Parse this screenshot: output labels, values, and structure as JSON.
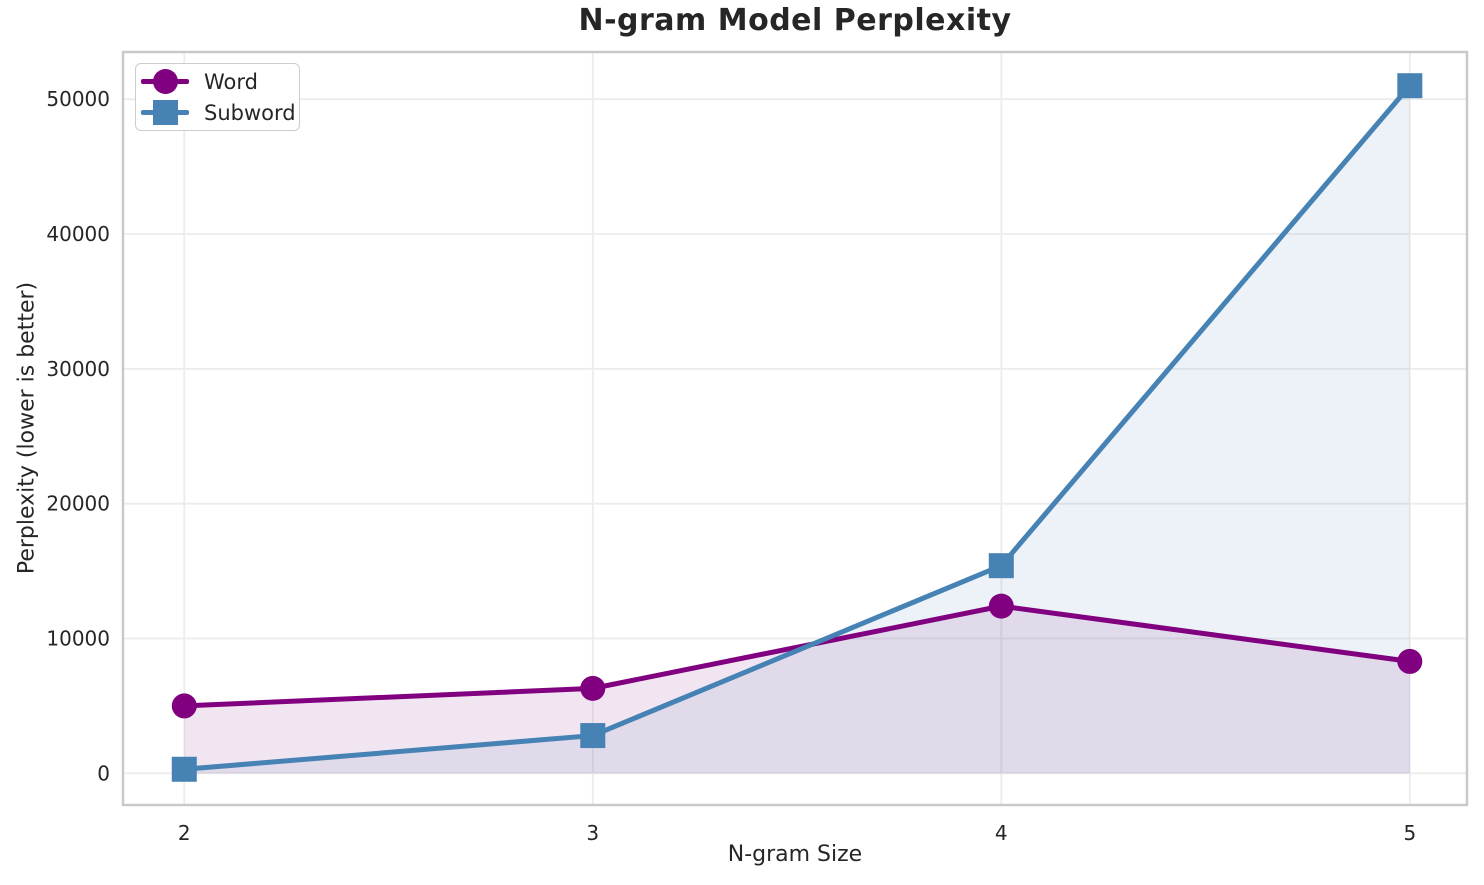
{
  "chart_data": {
    "type": "line",
    "title": "N-gram Model Perplexity",
    "xlabel": "N-gram Size",
    "ylabel": "Perplexity (lower is better)",
    "x": [
      2,
      3,
      4,
      5
    ],
    "series": [
      {
        "name": "Word",
        "values": [
          5000,
          6300,
          12400,
          8300
        ],
        "color": "#800080",
        "marker": "circle"
      },
      {
        "name": "Subword",
        "values": [
          300,
          2800,
          15400,
          51000
        ],
        "color": "#4682B4",
        "marker": "square"
      }
    ],
    "xticks": [
      "2",
      "3",
      "4",
      "5"
    ],
    "yticks": [
      0,
      10000,
      20000,
      30000,
      40000,
      50000
    ],
    "xlim": [
      1.85,
      5.14
    ],
    "ylim": [
      -2350,
      53500
    ],
    "grid": true,
    "legend_position": "upper left",
    "fill_to_zero": true,
    "fill_alpha": 0.1,
    "line_width": 5,
    "marker_size": 25,
    "colors": {
      "grid": "#ececec",
      "spine": "#c9c9c9",
      "text": "#262626",
      "background": "#ffffff"
    }
  }
}
